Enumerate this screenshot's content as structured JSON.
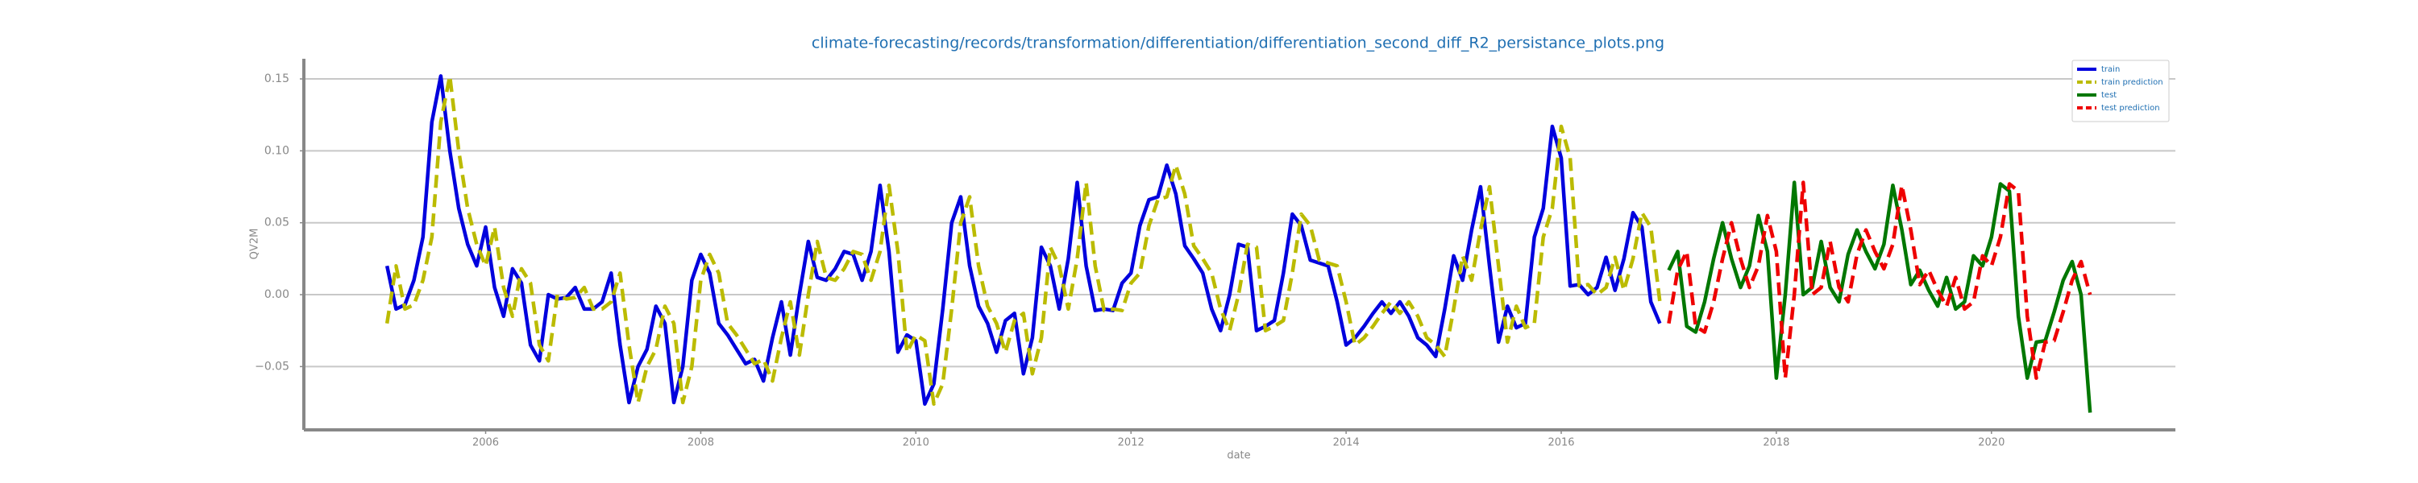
{
  "chart_data": {
    "type": "line",
    "title": "climate-forecasting/records/transformation/differentiation/differentiation_second_diff_R2_persistance_plots.png",
    "x_label": "date",
    "y_label": "QV2M",
    "xlim": [
      2004.31,
      2021.71
    ],
    "ylim": [
      -0.094,
      0.164
    ],
    "xticks": [
      2006,
      2008,
      2010,
      2012,
      2014,
      2016,
      2018,
      2020
    ],
    "yticks": [
      {
        "value": -0.05,
        "label": "−0.05"
      },
      {
        "value": 0,
        "label": "0.00"
      },
      0.05,
      {
        "value": 0.1,
        "label": "0.10"
      },
      0.15
    ],
    "grid": true,
    "legend": "upper right",
    "series": [
      {
        "name": "train",
        "color": "#0000dd",
        "dashed": false,
        "x": [
          2005.083,
          2005.167,
          2005.25,
          2005.333,
          2005.417,
          2005.5,
          2005.583,
          2005.667,
          2005.75,
          2005.833,
          2005.917,
          2006,
          2006.083,
          2006.167,
          2006.25,
          2006.333,
          2006.417,
          2006.5,
          2006.583,
          2006.667,
          2006.75,
          2006.833,
          2006.917,
          2007,
          2007.083,
          2007.167,
          2007.25,
          2007.333,
          2007.417,
          2007.5,
          2007.583,
          2007.667,
          2007.75,
          2007.833,
          2007.917,
          2008,
          2008.083,
          2008.167,
          2008.25,
          2008.333,
          2008.417,
          2008.5,
          2008.583,
          2008.667,
          2008.75,
          2008.833,
          2008.917,
          2009,
          2009.083,
          2009.167,
          2009.25,
          2009.333,
          2009.417,
          2009.5,
          2009.583,
          2009.667,
          2009.75,
          2009.833,
          2009.917,
          2010,
          2010.083,
          2010.167,
          2010.25,
          2010.333,
          2010.417,
          2010.5,
          2010.583,
          2010.667,
          2010.75,
          2010.833,
          2010.917,
          2011,
          2011.083,
          2011.167,
          2011.25,
          2011.333,
          2011.417,
          2011.5,
          2011.583,
          2011.667,
          2011.75,
          2011.833,
          2011.917,
          2012,
          2012.083,
          2012.167,
          2012.25,
          2012.333,
          2012.417,
          2012.5,
          2012.583,
          2012.667,
          2012.75,
          2012.833,
          2012.917,
          2013,
          2013.083,
          2013.167,
          2013.25,
          2013.333,
          2013.417,
          2013.5,
          2013.583,
          2013.667,
          2013.75,
          2013.833,
          2013.917,
          2014,
          2014.083,
          2014.167,
          2014.25,
          2014.333,
          2014.417,
          2014.5,
          2014.583,
          2014.667,
          2014.75,
          2014.833,
          2014.917,
          2015,
          2015.083,
          2015.167,
          2015.25,
          2015.333,
          2015.417,
          2015.5,
          2015.583,
          2015.667,
          2015.75,
          2015.833,
          2015.917,
          2016,
          2016.083,
          2016.167,
          2016.25,
          2016.333,
          2016.417,
          2016.5,
          2016.583,
          2016.667,
          2016.75,
          2016.833,
          2016.917
        ],
        "values": [
          0.02,
          -0.01,
          -0.007,
          0.01,
          0.04,
          0.12,
          0.152,
          0.1,
          0.06,
          0.035,
          0.02,
          0.047,
          0.005,
          -0.015,
          0.018,
          0.008,
          -0.035,
          -0.046,
          0.0,
          -0.003,
          -0.002,
          0.005,
          -0.01,
          -0.01,
          -0.005,
          0.015,
          -0.035,
          -0.075,
          -0.05,
          -0.038,
          -0.008,
          -0.02,
          -0.075,
          -0.05,
          0.01,
          0.028,
          0.015,
          -0.02,
          -0.028,
          -0.038,
          -0.048,
          -0.045,
          -0.06,
          -0.03,
          -0.005,
          -0.042,
          0.0,
          0.037,
          0.012,
          0.01,
          0.018,
          0.03,
          0.028,
          0.01,
          0.03,
          0.076,
          0.03,
          -0.04,
          -0.028,
          -0.032,
          -0.076,
          -0.062,
          -0.01,
          0.05,
          0.068,
          0.02,
          -0.008,
          -0.02,
          -0.04,
          -0.018,
          -0.013,
          -0.055,
          -0.03,
          0.033,
          0.02,
          -0.01,
          0.025,
          0.078,
          0.02,
          -0.011,
          -0.01,
          -0.011,
          0.008,
          0.015,
          0.048,
          0.066,
          0.068,
          0.09,
          0.07,
          0.034,
          0.025,
          0.015,
          -0.01,
          -0.025,
          0.0,
          0.035,
          0.033,
          -0.025,
          -0.022,
          -0.018,
          0.015,
          0.056,
          0.048,
          0.024,
          0.022,
          0.02,
          -0.005,
          -0.035,
          -0.03,
          -0.022,
          -0.013,
          -0.005,
          -0.013,
          -0.005,
          -0.015,
          -0.03,
          -0.035,
          -0.043,
          -0.01,
          0.027,
          0.01,
          0.045,
          0.075,
          0.02,
          -0.033,
          -0.008,
          -0.023,
          -0.02,
          0.04,
          0.06,
          0.117,
          0.095,
          0.006,
          0.007,
          0.0,
          0.005,
          0.026,
          0.003,
          0.025,
          0.057,
          0.047,
          -0.005,
          -0.02
        ]
      },
      {
        "name": "train prediction",
        "color": "#bbbb00",
        "dashed": true,
        "x": [
          2005.083,
          2005.167,
          2005.25,
          2005.333,
          2005.417,
          2005.5,
          2005.583,
          2005.667,
          2005.75,
          2005.833,
          2005.917,
          2006,
          2006.083,
          2006.167,
          2006.25,
          2006.333,
          2006.417,
          2006.5,
          2006.583,
          2006.667,
          2006.75,
          2006.833,
          2006.917,
          2007,
          2007.083,
          2007.167,
          2007.25,
          2007.333,
          2007.417,
          2007.5,
          2007.583,
          2007.667,
          2007.75,
          2007.833,
          2007.917,
          2008,
          2008.083,
          2008.167,
          2008.25,
          2008.333,
          2008.417,
          2008.5,
          2008.583,
          2008.667,
          2008.75,
          2008.833,
          2008.917,
          2009,
          2009.083,
          2009.167,
          2009.25,
          2009.333,
          2009.417,
          2009.5,
          2009.583,
          2009.667,
          2009.75,
          2009.833,
          2009.917,
          2010,
          2010.083,
          2010.167,
          2010.25,
          2010.333,
          2010.417,
          2010.5,
          2010.583,
          2010.667,
          2010.75,
          2010.833,
          2010.917,
          2011,
          2011.083,
          2011.167,
          2011.25,
          2011.333,
          2011.417,
          2011.5,
          2011.583,
          2011.667,
          2011.75,
          2011.833,
          2011.917,
          2012,
          2012.083,
          2012.167,
          2012.25,
          2012.333,
          2012.417,
          2012.5,
          2012.583,
          2012.667,
          2012.75,
          2012.833,
          2012.917,
          2013,
          2013.083,
          2013.167,
          2013.25,
          2013.333,
          2013.417,
          2013.5,
          2013.583,
          2013.667,
          2013.75,
          2013.833,
          2013.917,
          2014,
          2014.083,
          2014.167,
          2014.25,
          2014.333,
          2014.417,
          2014.5,
          2014.583,
          2014.667,
          2014.75,
          2014.833,
          2014.917,
          2015,
          2015.083,
          2015.167,
          2015.25,
          2015.333,
          2015.417,
          2015.5,
          2015.583,
          2015.667,
          2015.75,
          2015.833,
          2015.917,
          2016,
          2016.083,
          2016.167,
          2016.25,
          2016.333,
          2016.417,
          2016.5,
          2016.583,
          2016.667,
          2016.75,
          2016.833,
          2016.917
        ],
        "values": [
          -0.02,
          0.02,
          -0.01,
          -0.007,
          0.01,
          0.04,
          0.12,
          0.152,
          0.1,
          0.06,
          0.035,
          0.02,
          0.047,
          0.005,
          -0.015,
          0.018,
          0.008,
          -0.035,
          -0.046,
          0.0,
          -0.003,
          -0.002,
          0.005,
          -0.01,
          -0.01,
          -0.005,
          0.015,
          -0.035,
          -0.075,
          -0.05,
          -0.038,
          -0.008,
          -0.02,
          -0.075,
          -0.05,
          0.01,
          0.028,
          0.015,
          -0.02,
          -0.028,
          -0.038,
          -0.048,
          -0.045,
          -0.06,
          -0.03,
          -0.005,
          -0.042,
          0.0,
          0.037,
          0.012,
          0.01,
          0.018,
          0.03,
          0.028,
          0.01,
          0.03,
          0.076,
          0.03,
          -0.04,
          -0.028,
          -0.032,
          -0.076,
          -0.062,
          -0.01,
          0.05,
          0.068,
          0.02,
          -0.008,
          -0.02,
          -0.04,
          -0.018,
          -0.013,
          -0.055,
          -0.03,
          0.033,
          0.02,
          -0.01,
          0.025,
          0.078,
          0.02,
          -0.011,
          -0.01,
          -0.011,
          0.008,
          0.015,
          0.048,
          0.066,
          0.068,
          0.09,
          0.07,
          0.034,
          0.025,
          0.015,
          -0.01,
          -0.025,
          0.0,
          0.035,
          0.033,
          -0.025,
          -0.022,
          -0.018,
          0.015,
          0.056,
          0.048,
          0.024,
          0.022,
          0.02,
          -0.005,
          -0.035,
          -0.03,
          -0.022,
          -0.013,
          -0.005,
          -0.013,
          -0.005,
          -0.015,
          -0.03,
          -0.035,
          -0.043,
          -0.01,
          0.027,
          0.01,
          0.045,
          0.075,
          0.02,
          -0.033,
          -0.008,
          -0.023,
          -0.02,
          0.04,
          0.06,
          0.117,
          0.095,
          0.006,
          0.007,
          0.0,
          0.005,
          0.026,
          0.003,
          0.025,
          0.057,
          0.047,
          -0.005
        ]
      },
      {
        "name": "test",
        "color": "#007700",
        "dashed": false,
        "x": [
          2017,
          2017.083,
          2017.167,
          2017.25,
          2017.333,
          2017.417,
          2017.5,
          2017.583,
          2017.667,
          2017.75,
          2017.833,
          2017.917,
          2018,
          2018.083,
          2018.167,
          2018.25,
          2018.333,
          2018.417,
          2018.5,
          2018.583,
          2018.667,
          2018.75,
          2018.833,
          2018.917,
          2019,
          2019.083,
          2019.167,
          2019.25,
          2019.333,
          2019.417,
          2019.5,
          2019.583,
          2019.667,
          2019.75,
          2019.833,
          2019.917,
          2020,
          2020.083,
          2020.167,
          2020.25,
          2020.333,
          2020.417,
          2020.5,
          2020.583,
          2020.667,
          2020.75,
          2020.833,
          2020.917
        ],
        "values": [
          0.017,
          0.03,
          -0.022,
          -0.026,
          -0.005,
          0.025,
          0.05,
          0.025,
          0.005,
          0.02,
          0.055,
          0.03,
          -0.058,
          0.0,
          0.078,
          0.0,
          0.005,
          0.037,
          0.005,
          -0.005,
          0.028,
          0.045,
          0.03,
          0.018,
          0.035,
          0.076,
          0.045,
          0.007,
          0.017,
          0.003,
          -0.008,
          0.012,
          -0.01,
          -0.005,
          0.027,
          0.02,
          0.04,
          0.077,
          0.072,
          -0.015,
          -0.058,
          -0.033,
          -0.032,
          -0.012,
          0.01,
          0.023,
          0.0,
          -0.082
        ]
      },
      {
        "name": "test prediction",
        "color": "#ee0000",
        "dashed": true,
        "x": [
          2017,
          2017.083,
          2017.167,
          2017.25,
          2017.333,
          2017.417,
          2017.5,
          2017.583,
          2017.667,
          2017.75,
          2017.833,
          2017.917,
          2018,
          2018.083,
          2018.167,
          2018.25,
          2018.333,
          2018.417,
          2018.5,
          2018.583,
          2018.667,
          2018.75,
          2018.833,
          2018.917,
          2019,
          2019.083,
          2019.167,
          2019.25,
          2019.333,
          2019.417,
          2019.5,
          2019.583,
          2019.667,
          2019.75,
          2019.833,
          2019.917,
          2020,
          2020.083,
          2020.167,
          2020.25,
          2020.333,
          2020.417,
          2020.5,
          2020.583,
          2020.667,
          2020.75,
          2020.833,
          2020.917
        ],
        "values": [
          -0.02,
          0.017,
          0.03,
          -0.022,
          -0.026,
          -0.005,
          0.025,
          0.05,
          0.025,
          0.005,
          0.02,
          0.055,
          0.03,
          -0.058,
          0.0,
          0.078,
          0.0,
          0.005,
          0.037,
          0.005,
          -0.005,
          0.028,
          0.045,
          0.03,
          0.018,
          0.035,
          0.076,
          0.045,
          0.007,
          0.017,
          0.003,
          -0.008,
          0.012,
          -0.01,
          -0.005,
          0.027,
          0.02,
          0.04,
          0.077,
          0.072,
          -0.015,
          -0.058,
          -0.033,
          -0.032,
          -0.012,
          0.01,
          0.023,
          0.0
        ]
      }
    ]
  }
}
